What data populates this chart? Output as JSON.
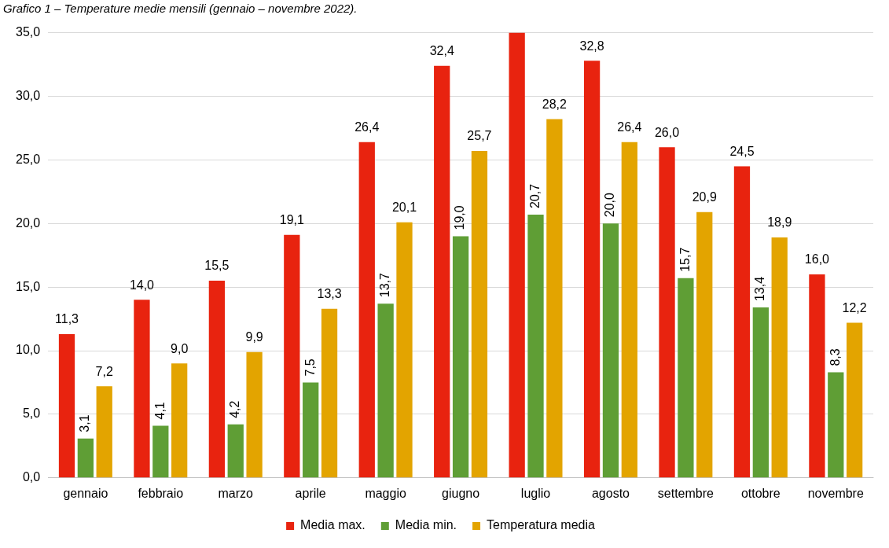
{
  "chart_data": {
    "type": "bar",
    "title": "Grafico 1 – Temperature medie mensili (gennaio – novembre 2022).",
    "categories": [
      "gennaio",
      "febbraio",
      "marzo",
      "aprile",
      "maggio",
      "giugno",
      "luglio",
      "agosto",
      "settembre",
      "ottobre",
      "novembre"
    ],
    "series": [
      {
        "name": "Media max.",
        "color": "#e8230f",
        "values": [
          11.3,
          14.0,
          15.5,
          19.1,
          26.4,
          32.4,
          35.0,
          32.8,
          26.0,
          24.5,
          16.0
        ],
        "value_labels": [
          "11,3",
          "14,0",
          "15,5",
          "19,1",
          "26,4",
          "32,4",
          null,
          "32,8",
          "26,0",
          "24,5",
          "16,0"
        ]
      },
      {
        "name": "Media min.",
        "color": "#5f9e35",
        "values": [
          3.1,
          4.1,
          4.2,
          7.5,
          13.7,
          19.0,
          20.7,
          20.0,
          15.7,
          13.4,
          8.3
        ],
        "value_labels": [
          "3,1",
          "4,1",
          "4,2",
          "7,5",
          "13,7",
          "19,0",
          "20,7",
          "20,0",
          "15,7",
          "13,4",
          "8,3"
        ]
      },
      {
        "name": "Temperatura media",
        "color": "#e3a400",
        "values": [
          7.2,
          9.0,
          9.9,
          13.3,
          20.1,
          25.7,
          28.2,
          26.4,
          20.9,
          18.9,
          12.2
        ],
        "value_labels": [
          "7,2",
          "9,0",
          "9,9",
          "13,3",
          "20,1",
          "25,7",
          "28,2",
          "26,4",
          "20,9",
          "18,9",
          "12,2"
        ]
      }
    ],
    "ylim": [
      0,
      35
    ],
    "yticks": [
      {
        "value": 0,
        "label": "0,0"
      },
      {
        "value": 5,
        "label": "5,0"
      },
      {
        "value": 10,
        "label": "10,0"
      },
      {
        "value": 15,
        "label": "15,0"
      },
      {
        "value": 20,
        "label": "20,0"
      },
      {
        "value": 25,
        "label": "25,0"
      },
      {
        "value": 30,
        "label": "30,0"
      },
      {
        "value": 35,
        "label": "35,0"
      }
    ],
    "grid": "y",
    "legend": "bottom"
  }
}
